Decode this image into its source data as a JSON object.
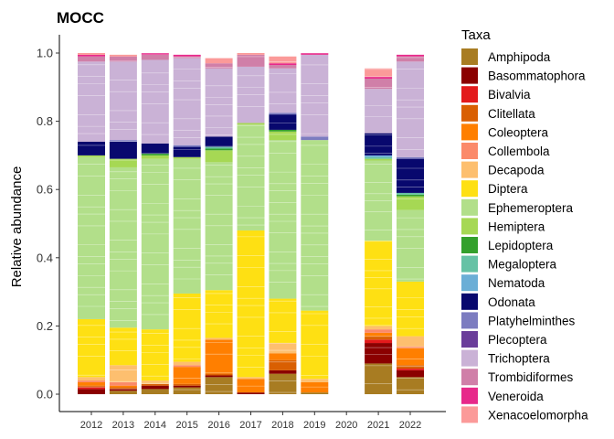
{
  "chart_data": {
    "type": "bar",
    "stacked": true,
    "title": "MOCC",
    "xlabel": "",
    "ylabel": "Relative abundance",
    "ylim": [
      0,
      1.0
    ],
    "y_ticks": [
      "0.0",
      "0.2",
      "0.4",
      "0.6",
      "0.8",
      "1.0"
    ],
    "grid": false,
    "legend_title": "Taxa",
    "legend_position": "right",
    "categories": [
      "2012",
      "2013",
      "2014",
      "2015",
      "2016",
      "2017",
      "2018",
      "2019",
      "2020",
      "2021",
      "2022"
    ],
    "series": [
      {
        "name": "Amphipoda",
        "color": "#A87C22",
        "values": [
          0,
          0.01,
          0.015,
          0.02,
          0.05,
          0,
          0.06,
          0.005,
          0,
          0.09,
          0.05
        ]
      },
      {
        "name": "Basommatophora",
        "color": "#8B0000",
        "values": [
          0.015,
          0.005,
          0.01,
          0.005,
          0.005,
          0.005,
          0.01,
          0,
          0,
          0.06,
          0.02
        ]
      },
      {
        "name": "Bivalvia",
        "color": "#E31A1C",
        "values": [
          0.005,
          0,
          0,
          0,
          0,
          0,
          0,
          0,
          0,
          0.01,
          0.005
        ]
      },
      {
        "name": "Clitellata",
        "color": "#D95F02",
        "values": [
          0.005,
          0.005,
          0.005,
          0.005,
          0.005,
          0,
          0.03,
          0,
          0,
          0.01,
          0.01
        ]
      },
      {
        "name": "Coleoptera",
        "color": "#FF7F00",
        "values": [
          0.01,
          0.005,
          0,
          0.05,
          0.1,
          0.04,
          0.02,
          0.03,
          0,
          0.01,
          0.05
        ]
      },
      {
        "name": "Collembola",
        "color": "#FB8A6A",
        "values": [
          0.005,
          0.01,
          0,
          0.005,
          0,
          0,
          0,
          0,
          0,
          0.01,
          0.005
        ]
      },
      {
        "name": "Decapoda",
        "color": "#FDBF6F",
        "values": [
          0.01,
          0.05,
          0.01,
          0.01,
          0.005,
          0.005,
          0.03,
          0.01,
          0,
          0.01,
          0.03
        ]
      },
      {
        "name": "Diptera",
        "color": "#FEE013",
        "values": [
          0.17,
          0.11,
          0.15,
          0.2,
          0.14,
          0.43,
          0.13,
          0.2,
          0,
          0.25,
          0.16
        ]
      },
      {
        "name": "Ephemeroptera",
        "color": "#B2DF8A",
        "values": [
          0.475,
          0.47,
          0.5,
          0.395,
          0.375,
          0.31,
          0.465,
          0.5,
          0,
          0.235,
          0.21
        ]
      },
      {
        "name": "Hemiptera",
        "color": "#A6D854",
        "values": [
          0.005,
          0.025,
          0.01,
          0.005,
          0.035,
          0.005,
          0.025,
          0,
          0,
          0.005,
          0.04
        ]
      },
      {
        "name": "Lepidoptera",
        "color": "#33A02C",
        "values": [
          0,
          0,
          0.005,
          0,
          0.005,
          0,
          0.005,
          0,
          0,
          0,
          0.005
        ]
      },
      {
        "name": "Megaloptera",
        "color": "#66C2A5",
        "values": [
          0,
          0,
          0,
          0,
          0.005,
          0,
          0,
          0,
          0,
          0.005,
          0.005
        ]
      },
      {
        "name": "Nematoda",
        "color": "#6BAED6",
        "values": [
          0,
          0,
          0,
          0,
          0,
          0,
          0,
          0,
          0,
          0.005,
          0
        ]
      },
      {
        "name": "Odonata",
        "color": "#08086E",
        "values": [
          0.04,
          0.05,
          0.03,
          0.03,
          0.03,
          0,
          0.045,
          0,
          0,
          0.065,
          0.1
        ]
      },
      {
        "name": "Platyhelminthes",
        "color": "#7C7CC0",
        "values": [
          0,
          0.005,
          0,
          0.005,
          0,
          0,
          0.005,
          0.01,
          0,
          0,
          0.005
        ]
      },
      {
        "name": "Plecoptera",
        "color": "#6A3D9A",
        "values": [
          0,
          0,
          0,
          0,
          0,
          0,
          0,
          0,
          0,
          0,
          0
        ]
      },
      {
        "name": "Trichoptera",
        "color": "#CAB2D6",
        "values": [
          0.235,
          0.23,
          0.245,
          0.255,
          0.2,
          0.165,
          0.13,
          0.24,
          0,
          0.13,
          0.28
        ]
      },
      {
        "name": "Trombidiformes",
        "color": "#D07FA8",
        "values": [
          0.015,
          0.015,
          0.015,
          0.005,
          0.015,
          0.035,
          0.01,
          0,
          0,
          0.03,
          0.015
        ]
      },
      {
        "name": "Veneroida",
        "color": "#E7298A",
        "values": [
          0.005,
          0,
          0.005,
          0.005,
          0,
          0,
          0.005,
          0.005,
          0,
          0.005,
          0.005
        ]
      },
      {
        "name": "Xenacoelomorpha",
        "color": "#FB9A99",
        "values": [
          0.005,
          0.005,
          0,
          0,
          0.015,
          0.005,
          0.02,
          0,
          0,
          0.025,
          0
        ]
      }
    ]
  }
}
